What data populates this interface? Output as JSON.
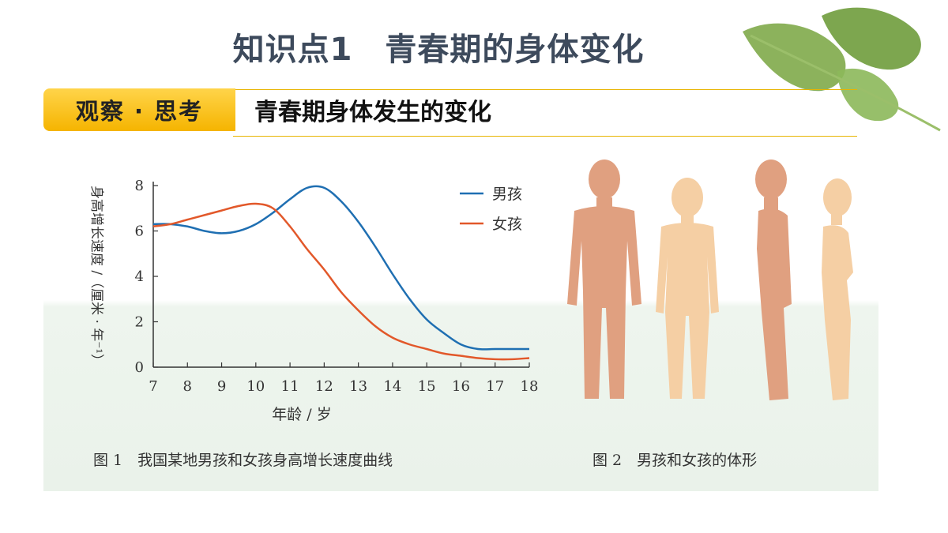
{
  "header": {
    "title": "知识点1　青春期的身体变化",
    "tag": "观察 · 思考",
    "topic": "青春期身体发生的变化"
  },
  "figure1": {
    "caption": "图 1　我国某地男孩和女孩身高增长速度曲线"
  },
  "figure2": {
    "caption": "图 2　男孩和女孩的体形"
  },
  "colors": {
    "boy": "#1f6fb2",
    "girl": "#e2582a",
    "accent": "#f5b400",
    "boy_skin": "#e0a080",
    "girl_skin": "#f5cfa4"
  },
  "chart_data": {
    "type": "line",
    "xlabel": "年龄 / 岁",
    "ylabel": "身高增长速度 /（厘米 · 年⁻¹）",
    "xlim": [
      7,
      18
    ],
    "ylim": [
      0,
      8
    ],
    "xticks": [
      7,
      8,
      9,
      10,
      11,
      12,
      13,
      14,
      15,
      16,
      17,
      18
    ],
    "yticks": [
      0,
      2,
      4,
      6,
      8
    ],
    "legend": "top-right",
    "grid": false,
    "series": [
      {
        "name": "男孩",
        "x": [
          7,
          7.5,
          8,
          8.5,
          9,
          9.5,
          10,
          10.5,
          11,
          11.5,
          12,
          12.5,
          13,
          13.5,
          14,
          14.5,
          15,
          15.5,
          16,
          16.5,
          17,
          17.5,
          18
        ],
        "y": [
          6.3,
          6.3,
          6.2,
          6.0,
          5.9,
          6.0,
          6.3,
          6.8,
          7.4,
          7.9,
          7.9,
          7.3,
          6.4,
          5.3,
          4.1,
          3.0,
          2.1,
          1.5,
          1.0,
          0.8,
          0.8,
          0.8,
          0.8
        ]
      },
      {
        "name": "女孩",
        "x": [
          7,
          7.5,
          8,
          8.5,
          9,
          9.5,
          10,
          10.5,
          11,
          11.5,
          12,
          12.5,
          13,
          13.5,
          14,
          14.5,
          15,
          15.5,
          16,
          16.5,
          17,
          17.5,
          18
        ],
        "y": [
          6.2,
          6.3,
          6.5,
          6.7,
          6.9,
          7.1,
          7.2,
          7.0,
          6.2,
          5.2,
          4.3,
          3.3,
          2.5,
          1.8,
          1.3,
          1.0,
          0.8,
          0.6,
          0.5,
          0.4,
          0.35,
          0.35,
          0.4
        ]
      }
    ]
  }
}
